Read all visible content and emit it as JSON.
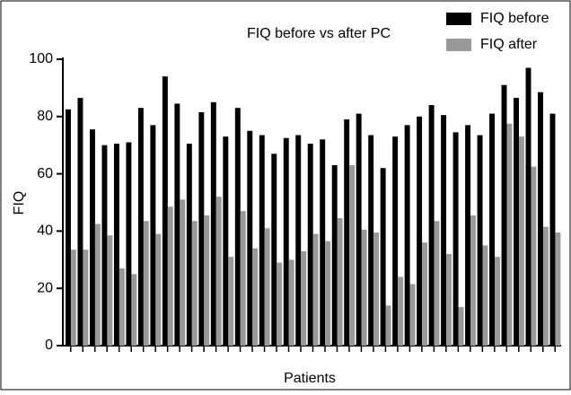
{
  "chart_data": {
    "type": "bar",
    "title": "FIQ before vs after PC",
    "x_label": "Patients",
    "y_label": "FIQ",
    "categories": [
      null,
      null,
      null,
      null,
      null,
      null,
      null,
      null,
      null,
      null,
      null,
      null,
      null,
      null,
      null,
      null,
      null,
      null,
      null,
      null,
      null,
      null,
      null,
      null,
      null,
      null,
      null,
      null,
      null,
      null,
      null,
      null,
      null,
      null,
      null,
      null,
      null,
      null,
      null,
      null,
      null
    ],
    "series": [
      {
        "name": "FIQ before",
        "color": "#000000",
        "values": [
          82.5,
          86.5,
          75.5,
          70,
          70.5,
          71,
          83,
          77,
          94,
          84.5,
          70.5,
          81.5,
          85,
          73,
          83,
          75,
          73.5,
          67,
          72.5,
          73.5,
          70.5,
          72,
          63,
          79,
          81,
          73.5,
          62,
          73,
          77,
          80,
          84,
          80.5,
          74.5,
          77,
          73.5,
          81,
          91,
          86.5,
          97,
          88.5,
          81
        ]
      },
      {
        "name": "FIQ after",
        "color": "#999999",
        "values": [
          33.5,
          33.5,
          42.5,
          38.5,
          27,
          25,
          43.5,
          39,
          48.5,
          51,
          43.5,
          45.5,
          52,
          31,
          47,
          34,
          41,
          29,
          30,
          33,
          39,
          36.5,
          44.5,
          63,
          40.5,
          39.5,
          14,
          24,
          21.5,
          36,
          43.5,
          32,
          13.5,
          45.5,
          35,
          31,
          77.5,
          73,
          62.5,
          41.5,
          39.5
        ]
      }
    ],
    "ylim": [
      0,
      100
    ],
    "yticks": [
      0,
      20,
      40,
      60,
      80,
      100
    ],
    "legend": "top-right"
  }
}
